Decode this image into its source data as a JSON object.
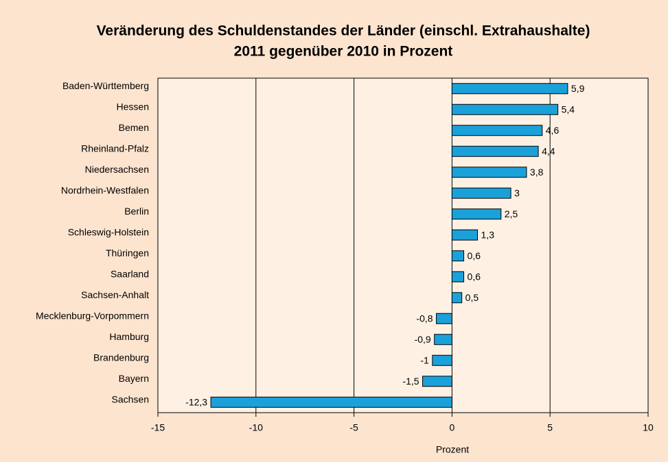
{
  "chart_data": {
    "type": "bar",
    "orientation": "horizontal",
    "title_lines": [
      "Veränderung des Schuldenstandes der Länder (einschl. Extrahaushalte)",
      "2011 gegenüber 2010 in Prozent"
    ],
    "x_label": "Prozent",
    "categories": [
      "Baden-Württemberg",
      "Hessen",
      "Bemen",
      "Rheinland-Pfalz",
      "Niedersachsen",
      "Nordrhein-Westfalen",
      "Berlin",
      "Schleswig-Holstein",
      "Thüringen",
      "Saarland",
      "Sachsen-Anhalt",
      "Mecklenburg-Vorpommern",
      "Hamburg",
      "Brandenburg",
      "Bayern",
      "Sachsen"
    ],
    "values": [
      5.9,
      5.4,
      4.6,
      4.4,
      3.8,
      3,
      2.5,
      1.3,
      0.6,
      0.6,
      0.5,
      -0.8,
      -0.9,
      -1,
      -1.5,
      -12.3
    ],
    "value_labels": [
      "5,9",
      "5,4",
      "4,6",
      "4,4",
      "3,8",
      "3",
      "2,5",
      "1,3",
      "0,6",
      "0,6",
      "0,5",
      "-0,8",
      "-0,9",
      "-1",
      "-1,5",
      "-12,3"
    ],
    "color": "#1ba1da",
    "xlim": [
      -15,
      10
    ],
    "xticks": [
      -15,
      -10,
      -5,
      0,
      5,
      10
    ],
    "grid": true
  }
}
